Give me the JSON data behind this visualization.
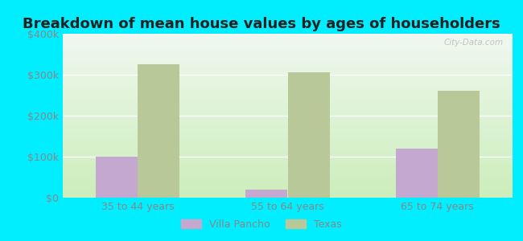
{
  "title": "Breakdown of mean house values by ages of householders",
  "categories": [
    "35 to 44 years",
    "55 to 64 years",
    "65 to 74 years"
  ],
  "series": {
    "Villa Pancho": [
      100000,
      20000,
      120000
    ],
    "Texas": [
      325000,
      305000,
      260000
    ]
  },
  "bar_colors": {
    "Villa Pancho": "#c4a8d0",
    "Texas": "#b8c898"
  },
  "ylim": [
    0,
    400000
  ],
  "yticks": [
    0,
    100000,
    200000,
    300000,
    400000
  ],
  "ytick_labels": [
    "$0",
    "$100k",
    "$200k",
    "$300k",
    "$400k"
  ],
  "background_outer": "#00eeff",
  "background_inner_bottom": "#cceebb",
  "background_inner_top": "#f0f8f0",
  "title_fontsize": 13,
  "tick_fontsize": 9,
  "legend_fontsize": 9,
  "bar_width": 0.28,
  "watermark": "City-Data.com",
  "title_color": "#222222",
  "tick_color": "#888888"
}
